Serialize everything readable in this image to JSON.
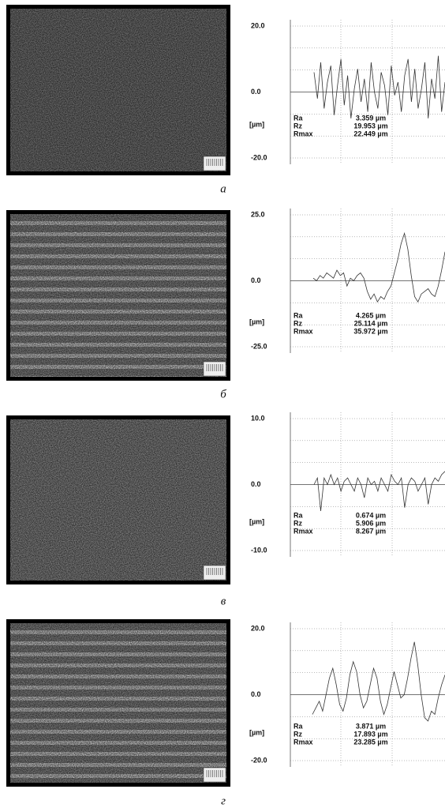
{
  "chart_data": [
    {
      "type": "line",
      "caption": "а",
      "ylabel": "[µm]",
      "ylim": [
        -20,
        20
      ],
      "yticks": [
        {
          "value": 20,
          "label": "20.0"
        },
        {
          "value": 0,
          "label": "0.0"
        },
        {
          "value": -20,
          "label": "-20.0"
        }
      ],
      "series": [
        {
          "color": "#333333",
          "values": [
            6,
            -2,
            9,
            -5,
            3,
            8,
            -7,
            2,
            10,
            -4,
            5,
            -8,
            1,
            7,
            -3,
            4,
            -6,
            9,
            0,
            -5,
            6,
            2,
            -7,
            8,
            -1,
            3,
            -6,
            5,
            10,
            -3,
            7,
            -5,
            1,
            9,
            -8,
            4,
            -2,
            11,
            -6,
            3
          ]
        }
      ],
      "stats": [
        {
          "name": "Ra",
          "value": "3.359 µm"
        },
        {
          "name": "Rz",
          "value": "19.953 µm"
        },
        {
          "name": "Rmax",
          "value": "22.449 µm"
        }
      ]
    },
    {
      "type": "line",
      "caption": "б",
      "ylabel": "[µm]",
      "ylim": [
        -25,
        25
      ],
      "yticks": [
        {
          "value": 25,
          "label": "25.0"
        },
        {
          "value": 0,
          "label": "0.0"
        },
        {
          "value": -25,
          "label": "-25.0"
        }
      ],
      "series": [
        {
          "color": "#333333",
          "values": [
            1,
            0,
            2,
            1,
            3,
            2,
            1,
            4,
            2,
            3,
            -2,
            1,
            0,
            2,
            3,
            1,
            -4,
            -7,
            -5,
            -8,
            -6,
            -7,
            -4,
            -2,
            3,
            8,
            14,
            18,
            12,
            2,
            -6,
            -8,
            -5,
            -4,
            -3,
            -5,
            -6,
            -2,
            4,
            11
          ]
        }
      ],
      "stats": [
        {
          "name": "Ra",
          "value": "4.265 µm"
        },
        {
          "name": "Rz",
          "value": "25.114 µm"
        },
        {
          "name": "Rmax",
          "value": "35.972 µm"
        }
      ]
    },
    {
      "type": "line",
      "caption": "в",
      "ylabel": "[µm]",
      "ylim": [
        -10,
        10
      ],
      "yticks": [
        {
          "value": 10,
          "label": "10.0"
        },
        {
          "value": 0,
          "label": "0.0"
        },
        {
          "value": -10,
          "label": "-10.0"
        }
      ],
      "series": [
        {
          "color": "#333333",
          "values": [
            0,
            1,
            -4,
            1,
            0,
            1.5,
            0,
            1,
            -1,
            0.5,
            1,
            0,
            -1,
            1,
            0,
            -2,
            1,
            0,
            0.5,
            -1,
            1,
            0,
            -1,
            1.5,
            0.5,
            0,
            1,
            -3.5,
            0,
            1,
            0.5,
            -1,
            0,
            1,
            -3,
            0,
            1,
            0.5,
            1.5,
            2
          ]
        }
      ],
      "stats": [
        {
          "name": "Ra",
          "value": "0.674 µm"
        },
        {
          "name": "Rz",
          "value": "5.906 µm"
        },
        {
          "name": "Rmax",
          "value": "8.267 µm"
        }
      ]
    },
    {
      "type": "line",
      "caption": "г",
      "ylabel": "[µm]",
      "ylim": [
        -20,
        20
      ],
      "yticks": [
        {
          "value": 20,
          "label": "20.0"
        },
        {
          "value": 0,
          "label": "0.0"
        },
        {
          "value": -20,
          "label": "-20.0"
        }
      ],
      "series": [
        {
          "color": "#333333",
          "values": [
            -6,
            -4,
            -2,
            -5,
            0,
            5,
            8,
            3,
            -3,
            -5,
            -1,
            6,
            10,
            7,
            0,
            -4,
            -2,
            3,
            8,
            5,
            -2,
            -6,
            -3,
            2,
            7,
            3,
            -1,
            0,
            5,
            11,
            16,
            9,
            0,
            -7,
            -8,
            -5,
            -6,
            -1,
            3,
            6
          ]
        }
      ],
      "stats": [
        {
          "name": "Ra",
          "value": "3.871 µm"
        },
        {
          "name": "Rz",
          "value": "17.893 µm"
        },
        {
          "name": "Rmax",
          "value": "23.285 µm"
        }
      ]
    }
  ]
}
